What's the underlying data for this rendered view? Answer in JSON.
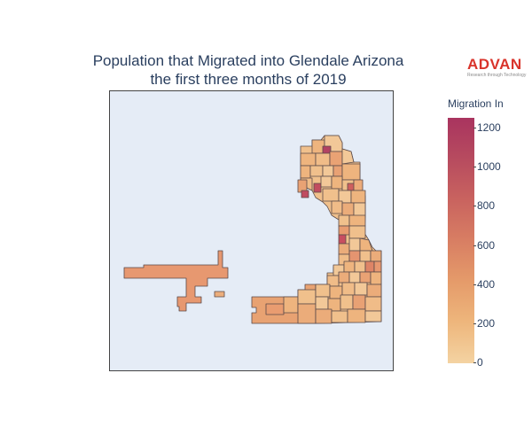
{
  "title_line1": "Population that Migrated into Glendale Arizona",
  "title_line2": "the first three months of 2019",
  "logo": {
    "name": "ADVAN",
    "tagline": "Research through Technology"
  },
  "colorbar": {
    "title": "Migration In",
    "ticks": [
      "0",
      "200",
      "400",
      "600",
      "800",
      "1000",
      "1200"
    ],
    "min": 0,
    "max": 1260,
    "colors": [
      "#f4d3a2",
      "#eeb67c",
      "#e59b6a",
      "#d87e63",
      "#c9635f",
      "#b74b5f",
      "#a9345f"
    ]
  },
  "map": {
    "background": "#e5ecf6",
    "boundary_color": "#5a4a4a"
  }
}
